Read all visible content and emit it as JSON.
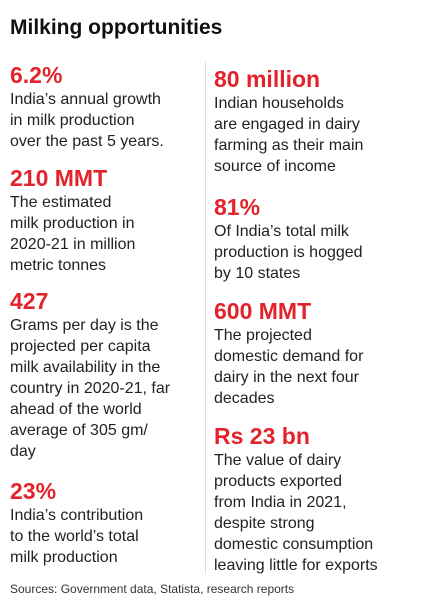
{
  "title": "Milking opportunities",
  "columns": [
    [
      {
        "figure": "6.2%",
        "description": [
          "India’s annual growth",
          "in milk production",
          "over the past 5 years."
        ]
      },
      {
        "figure": "210 MMT",
        "description": [
          "The estimated",
          "milk production in",
          "2020-21 in million",
          "metric tonnes"
        ]
      },
      {
        "figure": "427",
        "description": [
          "Grams per day is the",
          "projected per capita",
          "milk availability in the",
          "country in 2020-21, far",
          "ahead of the world",
          "average of 305 gm/",
          "day"
        ]
      },
      {
        "figure": "23%",
        "description": [
          "India’s contribution",
          "to the world’s total",
          "milk production"
        ]
      }
    ],
    [
      {
        "figure": "80 million",
        "description": [
          "Indian households",
          "are engaged in dairy",
          "farming as their main",
          "source of income"
        ]
      },
      {
        "figure": "81%",
        "description": [
          "Of India’s total milk",
          "production is hogged",
          "by 10 states"
        ]
      },
      {
        "figure": "600 MMT",
        "description": [
          "The projected",
          "domestic demand for",
          "dairy in the next four",
          "decades"
        ]
      },
      {
        "figure": "Rs 23 bn",
        "description": [
          "The value of dairy",
          "products exported",
          "from India in 2021,",
          "despite strong",
          "domestic consumption",
          "leaving little for exports"
        ]
      }
    ]
  ],
  "source": "Sources: Government data, Statista, research reports"
}
